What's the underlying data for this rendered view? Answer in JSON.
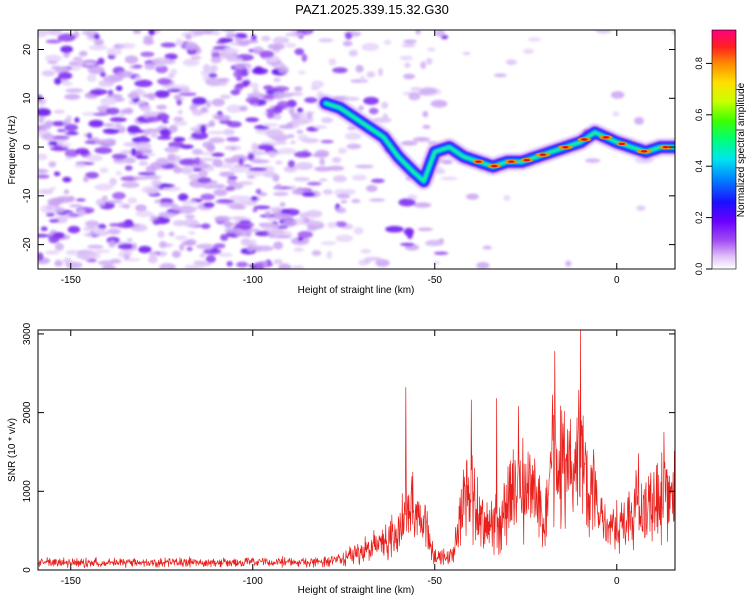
{
  "title": "PAZ1.2025.339.15.32.G30",
  "chart_data": [
    {
      "type": "heatmap",
      "name": "spectrogram",
      "xlabel": "Height of straight line (km)",
      "ylabel": "Frequency (Hz)",
      "xlim": [
        -159,
        16
      ],
      "ylim": [
        -25,
        24
      ],
      "xticks": [
        -150,
        -100,
        -50,
        0
      ],
      "yticks": [
        -20,
        -10,
        0,
        10,
        20
      ],
      "tick_labels_x": [
        "-150",
        "-100",
        "-50",
        "0"
      ],
      "tick_labels_y": [
        "-20",
        "-10",
        "0",
        "10",
        "20"
      ],
      "colorbar": {
        "label": "Normalized spectral amplitude",
        "range": [
          0,
          0.93
        ],
        "ticks": [
          0.0,
          0.2,
          0.4,
          0.6,
          0.8
        ],
        "tick_labels": [
          "0.0",
          "0.2",
          "0.4",
          "0.6",
          "0.8"
        ]
      },
      "ridge": {
        "x": [
          -80,
          -76,
          -72,
          -68,
          -64,
          -60,
          -56,
          -53,
          -50,
          -46,
          -42,
          -38,
          -34,
          -30,
          -26,
          -22,
          -18,
          -14,
          -10,
          -6,
          -3,
          0,
          4,
          8,
          12,
          16
        ],
        "y": [
          9,
          8,
          6,
          4,
          2,
          -2,
          -5,
          -7,
          -1,
          0,
          -2,
          -3,
          -4,
          -3,
          -3,
          -2,
          -1,
          0,
          1,
          3,
          2,
          1,
          0,
          -1,
          0,
          0
        ]
      }
    },
    {
      "type": "line",
      "name": "snr",
      "xlabel": "Height of straight line (km)",
      "ylabel": "SNR (10 * v/v)",
      "xlim": [
        -159,
        16
      ],
      "ylim": [
        0,
        3050
      ],
      "xticks": [
        -150,
        -100,
        -50,
        0
      ],
      "yticks": [
        0,
        1000,
        2000,
        3000
      ],
      "tick_labels_x": [
        "-150",
        "-100",
        "-50",
        "0"
      ],
      "tick_labels_y": [
        "0",
        "1000",
        "2000",
        "3000"
      ],
      "color": "#e8201c",
      "envelope": {
        "x": [
          -159,
          -100,
          -80,
          -75,
          -70,
          -65,
          -60,
          -57,
          -55,
          -52,
          -50,
          -47,
          -45,
          -42,
          -40,
          -37,
          -35,
          -32,
          -30,
          -27,
          -25,
          -22,
          -20,
          -18,
          -15,
          -12,
          -10,
          -8,
          -5,
          -3,
          0,
          3,
          6,
          10,
          13,
          16
        ],
        "y": [
          140,
          145,
          150,
          230,
          360,
          500,
          700,
          1300,
          1000,
          700,
          260,
          240,
          290,
          1300,
          1500,
          900,
          800,
          900,
          1300,
          1500,
          1600,
          1500,
          600,
          2000,
          2050,
          1800,
          2350,
          1700,
          1100,
          700,
          800,
          1000,
          1150,
          1250,
          1450,
          1400
        ]
      },
      "spikes": [
        {
          "x": -58,
          "y": 2320
        },
        {
          "x": -40,
          "y": 2160
        },
        {
          "x": -33,
          "y": 2180
        },
        {
          "x": -27,
          "y": 2080
        },
        {
          "x": -17,
          "y": 2780
        },
        {
          "x": -10,
          "y": 3050
        },
        {
          "x": 6,
          "y": 1480
        },
        {
          "x": 13,
          "y": 1750
        }
      ]
    }
  ]
}
